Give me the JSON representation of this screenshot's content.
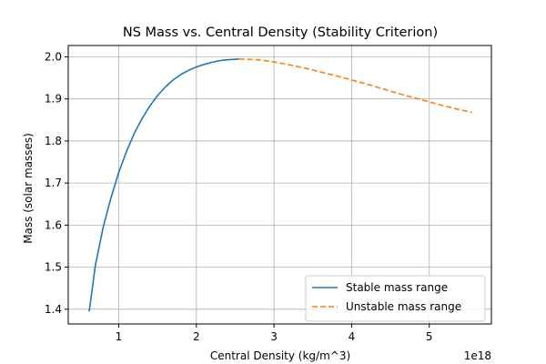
{
  "chart_data": {
    "type": "line",
    "title": "NS Mass vs. Central Density (Stability Criterion)",
    "xlabel": "Central Density (kg/m^3)",
    "ylabel": "Mass (solar masses)",
    "x_multiplier_label": "1e18",
    "xlim": [
      0.35,
      5.8
    ],
    "ylim": [
      1.365,
      2.027
    ],
    "x_ticks": [
      1,
      2,
      3,
      4,
      5
    ],
    "y_ticks": [
      1.4,
      1.5,
      1.6,
      1.7,
      1.8,
      1.9,
      2.0
    ],
    "y_tick_labels": [
      "1.4",
      "1.5",
      "1.6",
      "1.7",
      "1.8",
      "1.9",
      "2.0"
    ],
    "grid": true,
    "legend_position": "lower-right",
    "series": [
      {
        "name": "Stable mass range",
        "color": "#1f77b4",
        "dash": "solid",
        "x": [
          0.62,
          0.7,
          0.8,
          0.9,
          1.0,
          1.1,
          1.2,
          1.3,
          1.4,
          1.5,
          1.6,
          1.7,
          1.8,
          1.9,
          2.0,
          2.1,
          2.2,
          2.3,
          2.4,
          2.55
        ],
        "y": [
          1.395,
          1.505,
          1.595,
          1.665,
          1.725,
          1.775,
          1.818,
          1.853,
          1.883,
          1.908,
          1.928,
          1.945,
          1.958,
          1.968,
          1.976,
          1.982,
          1.987,
          1.991,
          1.993,
          1.995
        ]
      },
      {
        "name": "Unstable mass range",
        "color": "#ff7f0e",
        "dash": "dashed",
        "x": [
          2.55,
          2.8,
          3.0,
          3.2,
          3.4,
          3.6,
          3.8,
          4.0,
          4.2,
          4.4,
          4.6,
          4.8,
          5.0,
          5.2,
          5.4,
          5.55
        ],
        "y": [
          1.995,
          1.993,
          1.988,
          1.981,
          1.973,
          1.964,
          1.955,
          1.945,
          1.935,
          1.924,
          1.913,
          1.903,
          1.893,
          1.883,
          1.874,
          1.868
        ]
      }
    ]
  }
}
